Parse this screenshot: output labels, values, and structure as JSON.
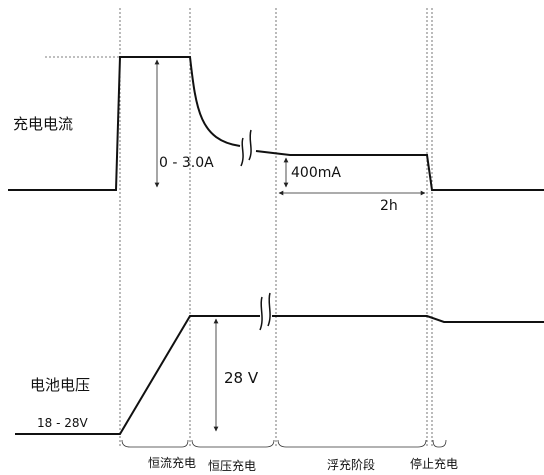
{
  "labels": {
    "charge_current": "充电电流",
    "battery_voltage": "电池电压",
    "current_range": "0 - 3.0A",
    "float_current": "400mA",
    "float_duration": "2h",
    "voltage_level": "28 V",
    "voltage_range": "18 - 28V"
  },
  "phases": [
    "恒流充电",
    "恒压充电",
    "浮充阶段",
    "停止充电"
  ]
}
